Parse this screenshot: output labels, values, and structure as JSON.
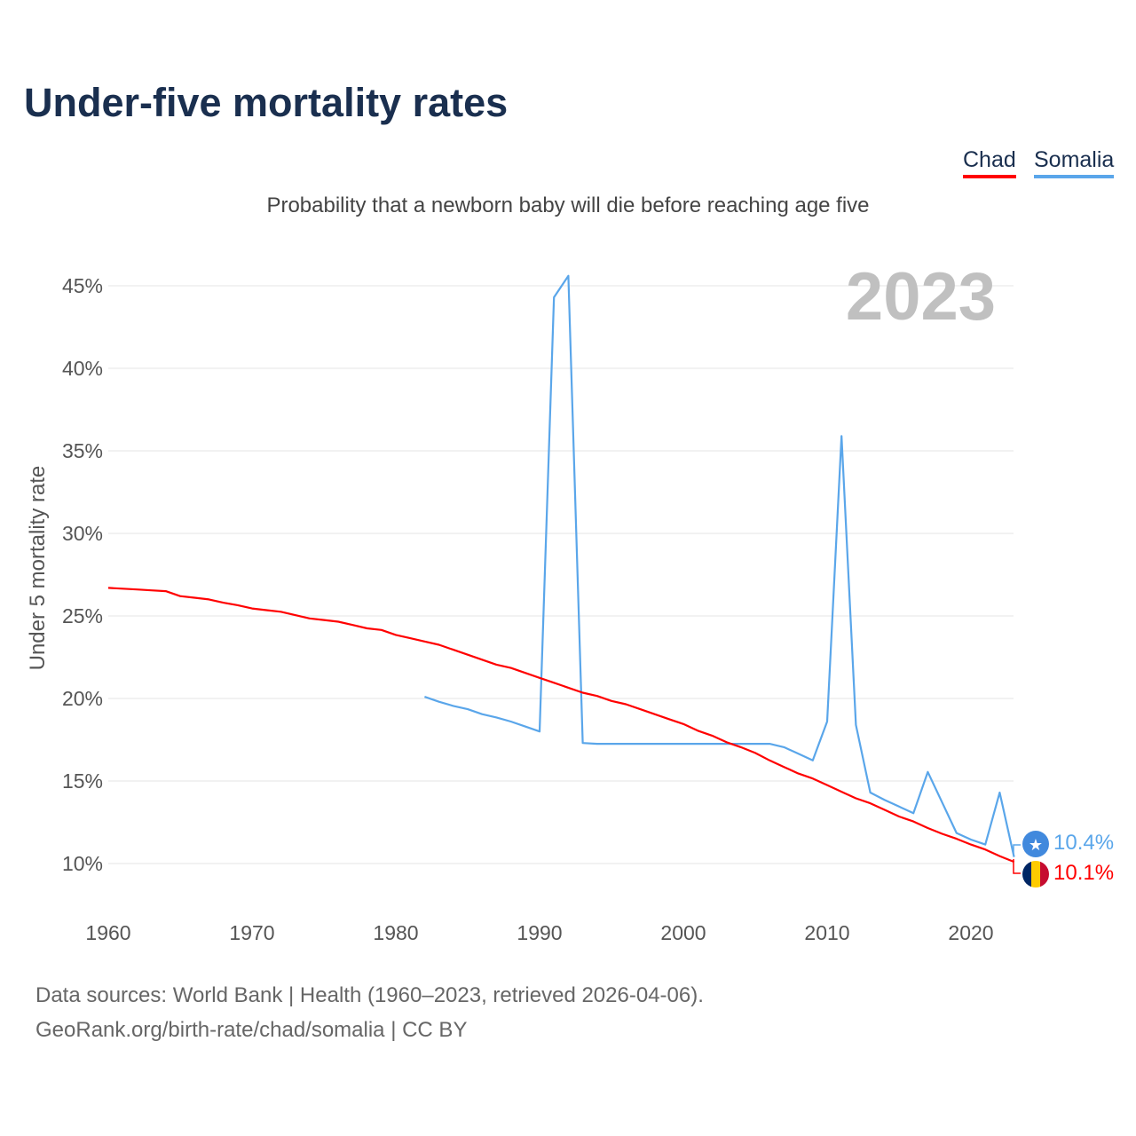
{
  "title": "Under-five mortality rates",
  "subtitle": "Probability that a newborn baby will die before reaching age five",
  "year_badge": "2023",
  "legend": [
    {
      "label": "Chad",
      "color": "#ff0000"
    },
    {
      "label": "Somalia",
      "color": "#5aa6ea"
    }
  ],
  "end_labels": {
    "chad": "10.1%",
    "somalia": "10.4%"
  },
  "footer": {
    "line1": "Data sources: World Bank | Health (1960–2023, retrieved 2026-04-06).",
    "line2": "GeoRank.org/birth-rate/chad/somalia | CC BY"
  },
  "chart_data": {
    "type": "line",
    "title": "Under-five mortality rates",
    "xlabel": "",
    "ylabel": "Under 5 mortality rate",
    "xlim": [
      1960,
      2023
    ],
    "ylim": [
      8,
      46
    ],
    "x_ticks": [
      1960,
      1970,
      1980,
      1990,
      2000,
      2010,
      2020
    ],
    "y_ticks": [
      10,
      15,
      20,
      25,
      30,
      35,
      40,
      45
    ],
    "y_tick_labels": [
      "10%",
      "15%",
      "20%",
      "25%",
      "30%",
      "35%",
      "40%",
      "45%"
    ],
    "grid": true,
    "legend_position": "top-right",
    "series": [
      {
        "name": "Chad",
        "color": "#ff0000",
        "points": [
          [
            1960,
            26.7
          ],
          [
            1961,
            26.65
          ],
          [
            1962,
            26.6
          ],
          [
            1963,
            26.55
          ],
          [
            1964,
            26.5
          ],
          [
            1965,
            26.2
          ],
          [
            1966,
            26.1
          ],
          [
            1967,
            26.0
          ],
          [
            1968,
            25.8
          ],
          [
            1969,
            25.65
          ],
          [
            1970,
            25.45
          ],
          [
            1971,
            25.35
          ],
          [
            1972,
            25.25
          ],
          [
            1973,
            25.05
          ],
          [
            1974,
            24.85
          ],
          [
            1975,
            24.75
          ],
          [
            1976,
            24.65
          ],
          [
            1977,
            24.45
          ],
          [
            1978,
            24.25
          ],
          [
            1979,
            24.15
          ],
          [
            1980,
            23.85
          ],
          [
            1981,
            23.65
          ],
          [
            1982,
            23.45
          ],
          [
            1983,
            23.25
          ],
          [
            1984,
            22.95
          ],
          [
            1985,
            22.65
          ],
          [
            1986,
            22.35
          ],
          [
            1987,
            22.05
          ],
          [
            1988,
            21.85
          ],
          [
            1989,
            21.55
          ],
          [
            1990,
            21.25
          ],
          [
            1991,
            20.95
          ],
          [
            1992,
            20.65
          ],
          [
            1993,
            20.35
          ],
          [
            1994,
            20.15
          ],
          [
            1995,
            19.85
          ],
          [
            1996,
            19.65
          ],
          [
            1997,
            19.35
          ],
          [
            1998,
            19.05
          ],
          [
            1999,
            18.75
          ],
          [
            2000,
            18.45
          ],
          [
            2001,
            18.05
          ],
          [
            2002,
            17.75
          ],
          [
            2003,
            17.35
          ],
          [
            2004,
            17.05
          ],
          [
            2005,
            16.7
          ],
          [
            2006,
            16.25
          ],
          [
            2007,
            15.85
          ],
          [
            2008,
            15.45
          ],
          [
            2009,
            15.15
          ],
          [
            2010,
            14.75
          ],
          [
            2011,
            14.35
          ],
          [
            2012,
            13.95
          ],
          [
            2013,
            13.65
          ],
          [
            2014,
            13.25
          ],
          [
            2015,
            12.85
          ],
          [
            2016,
            12.55
          ],
          [
            2017,
            12.15
          ],
          [
            2018,
            11.8
          ],
          [
            2019,
            11.5
          ],
          [
            2020,
            11.15
          ],
          [
            2021,
            10.85
          ],
          [
            2022,
            10.45
          ],
          [
            2023,
            10.1
          ]
        ]
      },
      {
        "name": "Somalia",
        "color": "#5aa6ea",
        "points": [
          [
            1982,
            20.1
          ],
          [
            1983,
            19.8
          ],
          [
            1984,
            19.55
          ],
          [
            1985,
            19.35
          ],
          [
            1986,
            19.05
          ],
          [
            1987,
            18.85
          ],
          [
            1988,
            18.6
          ],
          [
            1989,
            18.3
          ],
          [
            1990,
            18.0
          ],
          [
            1991,
            44.3
          ],
          [
            1992,
            45.6
          ],
          [
            1993,
            17.3
          ],
          [
            1994,
            17.25
          ],
          [
            1995,
            17.25
          ],
          [
            1996,
            17.25
          ],
          [
            1997,
            17.25
          ],
          [
            1998,
            17.25
          ],
          [
            1999,
            17.25
          ],
          [
            2000,
            17.25
          ],
          [
            2001,
            17.25
          ],
          [
            2002,
            17.25
          ],
          [
            2003,
            17.25
          ],
          [
            2004,
            17.25
          ],
          [
            2005,
            17.25
          ],
          [
            2006,
            17.25
          ],
          [
            2007,
            17.05
          ],
          [
            2008,
            16.65
          ],
          [
            2009,
            16.25
          ],
          [
            2010,
            18.6
          ],
          [
            2011,
            35.9
          ],
          [
            2012,
            18.4
          ],
          [
            2013,
            14.3
          ],
          [
            2014,
            13.85
          ],
          [
            2015,
            13.45
          ],
          [
            2016,
            13.05
          ],
          [
            2017,
            15.55
          ],
          [
            2018,
            13.7
          ],
          [
            2019,
            11.85
          ],
          [
            2020,
            11.45
          ],
          [
            2021,
            11.15
          ],
          [
            2022,
            14.3
          ],
          [
            2023,
            10.4
          ]
        ]
      }
    ]
  }
}
